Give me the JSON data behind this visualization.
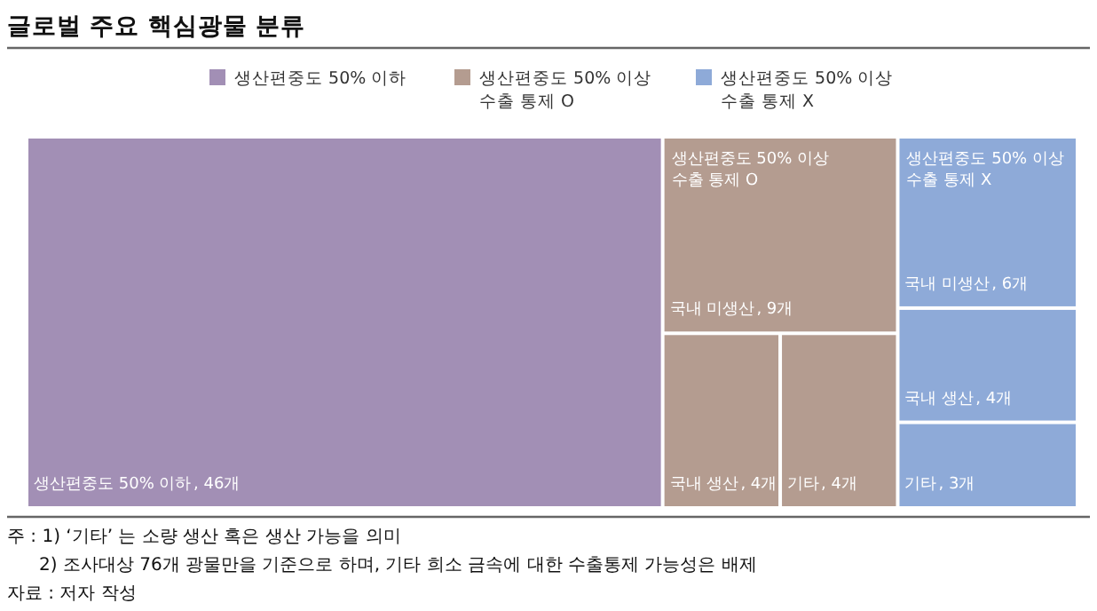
{
  "chart_data": {
    "type": "other",
    "title": "글로벌 주요 핵심광물 분류",
    "categories": [
      "생산편중도 50% 이하",
      "국내 미생산",
      "국내 생산",
      "기타",
      "국내 미생산",
      "국내 생산",
      "기타"
    ],
    "series": [
      {
        "name": "생산편중도 50% 이하",
        "color": "#a28fb5",
        "values": [
          46,
          null,
          null,
          null,
          null,
          null,
          null
        ],
        "value_labels": [
          ", 46개",
          null,
          null,
          null,
          null,
          null,
          null
        ]
      },
      {
        "name": "생산편중도 50% 이상 수출 통제 O",
        "color": "#b49c90",
        "values": [
          null,
          9,
          4,
          4,
          null,
          null,
          null
        ],
        "value_labels": [
          null,
          ", 9개",
          ", 4개",
          ", 4개",
          null,
          null,
          null
        ]
      },
      {
        "name": "생산편중도 50% 이상 수출 통제 X",
        "color": "#8eaad8",
        "values": [
          null,
          null,
          null,
          null,
          6,
          4,
          3
        ],
        "value_labels": [
          null,
          null,
          null,
          null,
          ", 6개",
          ", 4개",
          ", 3개"
        ]
      }
    ],
    "legend": "top",
    "annotations": [
      "주 : 1) ‘기타’ 는 소량 생산 혹은 생산 가능을 의미",
      "2) 조사대상 76개 광물만을 기준으로 하며, 기타 희소 금속에 대한 수출통제 가능성은 배제",
      "자료 : 저자 작성"
    ]
  }
}
